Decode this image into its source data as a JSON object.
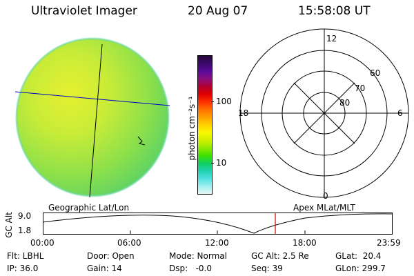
{
  "header": {
    "instrument": "Ultraviolet Imager",
    "date": "20 Aug 07",
    "time": "15:58:08 UT"
  },
  "colorbar": {
    "unit_label": "photon cm⁻²s⁻¹",
    "tick_100": "100",
    "tick_10": "10",
    "colors": [
      "#2a0a3a",
      "#3a0a6a",
      "#5a0a9a",
      "#8a1080",
      "#b00030",
      "#e00000",
      "#ff3000",
      "#ff7000",
      "#ffa000",
      "#ffd000",
      "#f8f800",
      "#d0f000",
      "#90e800",
      "#40e000",
      "#10d060",
      "#20d0b0",
      "#50e0e0",
      "#a0f0f0",
      "#e8f8f8"
    ]
  },
  "polar_grid": {
    "mlt_top": "12",
    "mlt_left": "18",
    "mlt_right": "6",
    "mlt_bottom": "0",
    "lat_60": "60",
    "lat_70": "70",
    "lat_80": "80"
  },
  "image_panel": {
    "caption": "Geographic Lat/Lon"
  },
  "polar_panel": {
    "caption": "Apex MLat/MLT"
  },
  "orbit_plot": {
    "ylabel": "GC Alt",
    "y_top": "9.0",
    "y_bottom": "1.8",
    "x_ticks": [
      "00:00",
      "06:00",
      "12:00",
      "18:00",
      "23:59"
    ],
    "marker_color": "#cc0000"
  },
  "status": {
    "filter": "Flt: LBHL",
    "door": "Door: Open",
    "mode": "Mode: Normal",
    "gc_alt": "GC Alt: 2.5 Re",
    "glat": "GLat:  20.4",
    "ip": "IP: 36.0",
    "gain": "Gain: 14",
    "dsp": "Dsp:   -0.0",
    "seq": "Seq: 39",
    "glon": "GLon: 299.7"
  }
}
